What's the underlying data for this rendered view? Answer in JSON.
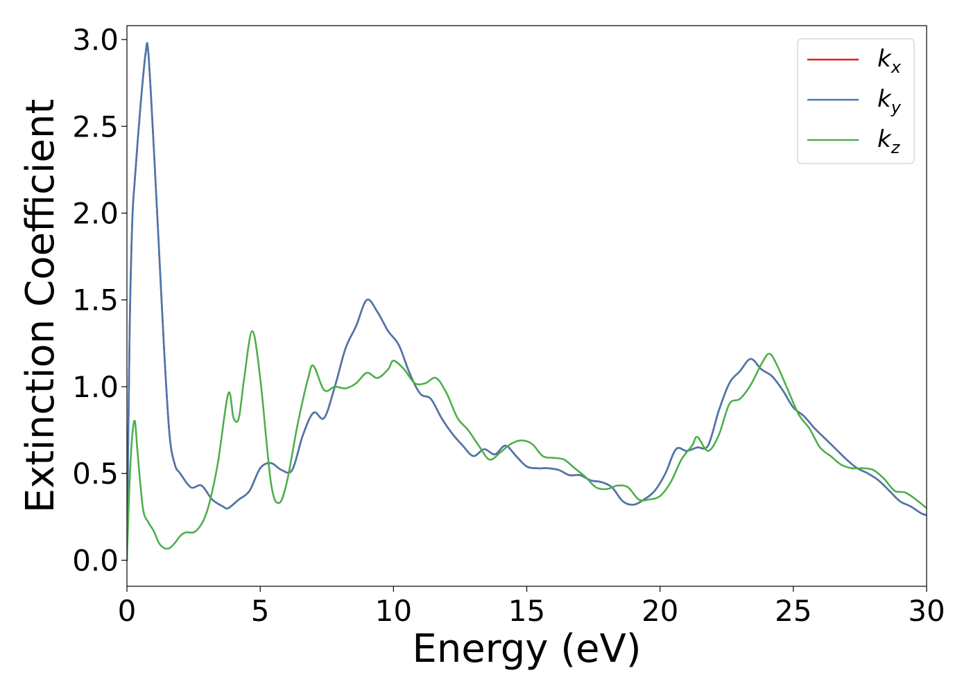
{
  "chart_data": {
    "type": "line",
    "title": "",
    "xlabel": "Energy (eV)",
    "ylabel": "Extinction Coefficient",
    "xlim": [
      0,
      30
    ],
    "ylim": [
      -0.15,
      3.08
    ],
    "xticks": [
      0,
      5,
      10,
      15,
      20,
      25,
      30
    ],
    "yticks": [
      0.0,
      0.5,
      1.0,
      1.5,
      2.0,
      2.5,
      3.0
    ],
    "xtick_labels": [
      "0",
      "5",
      "10",
      "15",
      "20",
      "25",
      "30"
    ],
    "ytick_labels": [
      "0.0",
      "0.5",
      "1.0",
      "1.5",
      "2.0",
      "2.5",
      "3.0"
    ],
    "grid": false,
    "legend_position": "top-right",
    "series": [
      {
        "name": "k_x",
        "legend_base": "k",
        "legend_sub": "x",
        "color": "#e41a1c",
        "x": [
          0,
          0.1,
          0.2,
          0.3,
          0.5,
          0.7,
          0.8,
          1.0,
          1.2,
          1.4,
          1.6,
          1.8,
          2.0,
          2.4,
          2.8,
          3.2,
          3.6,
          3.8,
          4.2,
          4.6,
          5.0,
          5.4,
          5.8,
          6.2,
          6.6,
          7.0,
          7.4,
          7.8,
          8.2,
          8.6,
          9.0,
          9.4,
          9.8,
          10.2,
          10.6,
          11.0,
          11.4,
          11.8,
          12.2,
          12.6,
          13.0,
          13.4,
          13.8,
          14.2,
          14.6,
          15.0,
          15.4,
          15.8,
          16.2,
          16.6,
          17.0,
          17.4,
          17.8,
          18.2,
          18.6,
          19.0,
          19.4,
          19.8,
          20.2,
          20.6,
          21.0,
          21.4,
          21.8,
          22.2,
          22.6,
          23.0,
          23.4,
          23.8,
          24.2,
          24.6,
          25.0,
          25.4,
          25.8,
          26.2,
          26.6,
          27.0,
          27.4,
          27.8,
          28.2,
          28.6,
          29.0,
          29.4,
          29.8,
          30.0
        ],
        "y": [
          0.0,
          1.3,
          1.95,
          2.2,
          2.6,
          2.92,
          2.93,
          2.4,
          1.8,
          1.2,
          0.72,
          0.55,
          0.5,
          0.42,
          0.43,
          0.35,
          0.31,
          0.3,
          0.35,
          0.4,
          0.53,
          0.56,
          0.52,
          0.52,
          0.72,
          0.85,
          0.82,
          1.0,
          1.22,
          1.35,
          1.5,
          1.43,
          1.32,
          1.24,
          1.08,
          0.96,
          0.93,
          0.82,
          0.73,
          0.66,
          0.6,
          0.64,
          0.61,
          0.66,
          0.6,
          0.54,
          0.53,
          0.53,
          0.52,
          0.49,
          0.49,
          0.46,
          0.45,
          0.42,
          0.34,
          0.32,
          0.35,
          0.4,
          0.5,
          0.64,
          0.63,
          0.65,
          0.66,
          0.86,
          1.02,
          1.09,
          1.16,
          1.1,
          1.06,
          0.98,
          0.88,
          0.83,
          0.76,
          0.7,
          0.64,
          0.58,
          0.53,
          0.5,
          0.46,
          0.4,
          0.34,
          0.31,
          0.27,
          0.26
        ]
      },
      {
        "name": "k_y",
        "legend_base": "k",
        "legend_sub": "y",
        "color": "#4a78ad",
        "x": [
          0,
          0.1,
          0.2,
          0.3,
          0.5,
          0.7,
          0.8,
          1.0,
          1.2,
          1.4,
          1.6,
          1.8,
          2.0,
          2.4,
          2.8,
          3.2,
          3.6,
          3.8,
          4.2,
          4.6,
          5.0,
          5.4,
          5.8,
          6.2,
          6.6,
          7.0,
          7.4,
          7.8,
          8.2,
          8.6,
          9.0,
          9.4,
          9.8,
          10.2,
          10.6,
          11.0,
          11.4,
          11.8,
          12.2,
          12.6,
          13.0,
          13.4,
          13.8,
          14.2,
          14.6,
          15.0,
          15.4,
          15.8,
          16.2,
          16.6,
          17.0,
          17.4,
          17.8,
          18.2,
          18.6,
          19.0,
          19.4,
          19.8,
          20.2,
          20.6,
          21.0,
          21.4,
          21.8,
          22.2,
          22.6,
          23.0,
          23.4,
          23.8,
          24.2,
          24.6,
          25.0,
          25.4,
          25.8,
          26.2,
          26.6,
          27.0,
          27.4,
          27.8,
          28.2,
          28.6,
          29.0,
          29.4,
          29.8,
          30.0
        ],
        "y": [
          0.0,
          1.3,
          1.95,
          2.2,
          2.6,
          2.92,
          2.93,
          2.4,
          1.8,
          1.2,
          0.72,
          0.55,
          0.5,
          0.42,
          0.43,
          0.35,
          0.31,
          0.3,
          0.35,
          0.4,
          0.53,
          0.56,
          0.52,
          0.52,
          0.72,
          0.85,
          0.82,
          1.0,
          1.22,
          1.35,
          1.5,
          1.43,
          1.32,
          1.24,
          1.08,
          0.96,
          0.93,
          0.82,
          0.73,
          0.66,
          0.6,
          0.64,
          0.61,
          0.66,
          0.6,
          0.54,
          0.53,
          0.53,
          0.52,
          0.49,
          0.49,
          0.46,
          0.45,
          0.42,
          0.34,
          0.32,
          0.35,
          0.4,
          0.5,
          0.64,
          0.63,
          0.65,
          0.66,
          0.86,
          1.02,
          1.09,
          1.16,
          1.1,
          1.06,
          0.98,
          0.88,
          0.83,
          0.76,
          0.7,
          0.64,
          0.58,
          0.53,
          0.5,
          0.46,
          0.4,
          0.34,
          0.31,
          0.27,
          0.26
        ]
      },
      {
        "name": "k_z",
        "legend_base": "k",
        "legend_sub": "z",
        "color": "#4daf4a",
        "x": [
          0,
          0.1,
          0.2,
          0.3,
          0.4,
          0.6,
          0.8,
          1.0,
          1.2,
          1.4,
          1.6,
          1.8,
          2.0,
          2.2,
          2.6,
          3.0,
          3.4,
          3.8,
          4.0,
          4.2,
          4.4,
          4.7,
          5.0,
          5.4,
          5.7,
          6.0,
          6.4,
          6.8,
          7.0,
          7.4,
          7.8,
          8.2,
          8.6,
          9.0,
          9.4,
          9.8,
          10.0,
          10.4,
          10.8,
          11.2,
          11.6,
          12.0,
          12.4,
          12.8,
          13.2,
          13.6,
          14.0,
          14.4,
          14.8,
          15.2,
          15.6,
          16.0,
          16.4,
          16.8,
          17.2,
          17.6,
          18.0,
          18.4,
          18.8,
          19.2,
          19.6,
          20.0,
          20.4,
          20.8,
          21.2,
          21.4,
          21.8,
          22.2,
          22.6,
          23.0,
          23.4,
          23.8,
          24.1,
          24.4,
          24.8,
          25.2,
          25.6,
          26.0,
          26.4,
          26.8,
          27.2,
          27.6,
          28.0,
          28.4,
          28.8,
          29.2,
          29.6,
          30.0
        ],
        "y": [
          0.0,
          0.45,
          0.72,
          0.8,
          0.62,
          0.3,
          0.22,
          0.17,
          0.1,
          0.07,
          0.07,
          0.1,
          0.14,
          0.16,
          0.17,
          0.28,
          0.55,
          0.96,
          0.82,
          0.82,
          1.05,
          1.32,
          1.05,
          0.45,
          0.33,
          0.45,
          0.78,
          1.05,
          1.12,
          0.98,
          1.0,
          0.99,
          1.02,
          1.08,
          1.05,
          1.1,
          1.15,
          1.1,
          1.02,
          1.02,
          1.05,
          0.96,
          0.82,
          0.75,
          0.66,
          0.58,
          0.62,
          0.67,
          0.69,
          0.67,
          0.6,
          0.59,
          0.58,
          0.53,
          0.48,
          0.42,
          0.41,
          0.43,
          0.42,
          0.35,
          0.35,
          0.37,
          0.45,
          0.58,
          0.66,
          0.71,
          0.63,
          0.72,
          0.9,
          0.93,
          1.01,
          1.13,
          1.19,
          1.12,
          0.98,
          0.84,
          0.76,
          0.65,
          0.6,
          0.55,
          0.53,
          0.53,
          0.52,
          0.47,
          0.4,
          0.39,
          0.35,
          0.3
        ]
      }
    ]
  }
}
